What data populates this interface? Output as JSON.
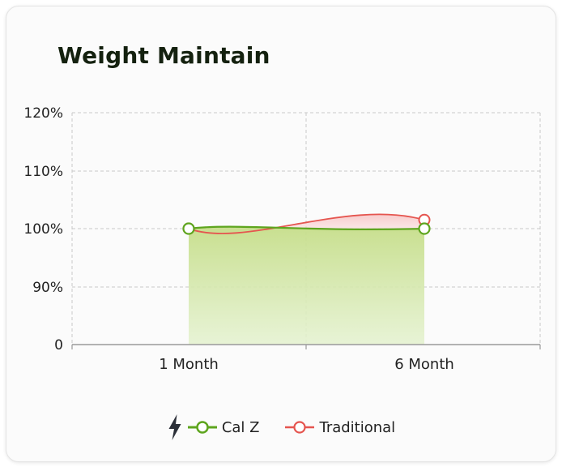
{
  "title": "Weight Maintain",
  "chart_data": {
    "type": "line",
    "title": "Weight Maintain",
    "xlabel": "",
    "ylabel": "",
    "categories": [
      "1 Month",
      "6 Month"
    ],
    "y_tick_labels": [
      "0",
      "90%",
      "100%",
      "110%",
      "120%"
    ],
    "grid": true,
    "legend_position": "bottom-center",
    "series": [
      {
        "name": "Cal Z",
        "values": [
          100,
          100
        ],
        "color": "#5ea51e",
        "area_fill": true,
        "icon": "lightning-icon"
      },
      {
        "name": "Traditional",
        "values": [
          100,
          101.5
        ],
        "color": "#e5554f",
        "area_fill": true
      }
    ]
  }
}
